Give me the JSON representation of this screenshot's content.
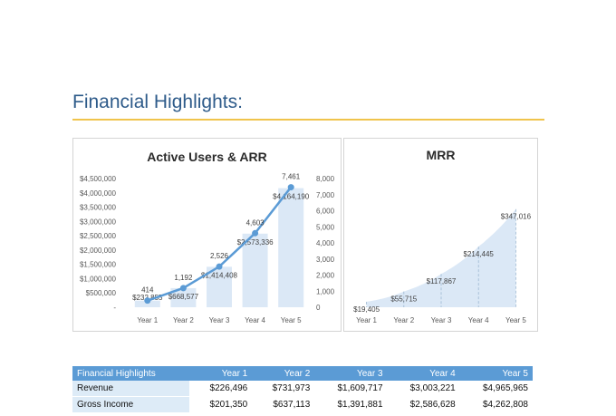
{
  "page_title": "Financial Highlights:",
  "colors": {
    "bar": "#dbe8f6",
    "line": "#5b9bd5",
    "area": "#dbe8f6",
    "accent_rule": "#f0c44c",
    "table_header": "#5b9bd5",
    "table_label": "#ddebf7"
  },
  "chart_data": [
    {
      "type": "bar",
      "title": "Active Users & ARR",
      "categories": [
        "Year 1",
        "Year 2",
        "Year 3",
        "Year 4",
        "Year 5"
      ],
      "series": [
        {
          "name": "",
          "type": "bar",
          "axis": "left",
          "values": [
            232855,
            668577,
            1414408,
            2573336,
            4164190
          ],
          "labels": [
            "$232,855",
            "$668,577",
            "$1,414,408",
            "$2,573,336",
            "$4,164,190"
          ]
        },
        {
          "name": "",
          "type": "line",
          "axis": "right",
          "values": [
            414,
            1192,
            2526,
            4603,
            7461
          ],
          "labels": [
            "414",
            "1,192",
            "2,526",
            "4,603",
            "7,461"
          ]
        }
      ],
      "y_left": {
        "lim": [
          0,
          4500000
        ],
        "ticks": [
          "-",
          "$500,000",
          "$1,000,000",
          "$1,500,000",
          "$2,000,000",
          "$2,500,000",
          "$3,000,000",
          "$3,500,000",
          "$4,000,000",
          "$4,500,000"
        ]
      },
      "y_right": {
        "lim": [
          0,
          8000
        ],
        "ticks": [
          "0",
          "1,000",
          "2,000",
          "3,000",
          "4,000",
          "5,000",
          "6,000",
          "7,000",
          "8,000"
        ]
      },
      "grid": false,
      "legend": "none"
    },
    {
      "type": "area",
      "title": "MRR",
      "categories": [
        "Year 1",
        "Year 2",
        "Year 3",
        "Year 4",
        "Year 5"
      ],
      "values": [
        19405,
        55715,
        117867,
        214445,
        347016
      ],
      "labels": [
        "$19,405",
        "$55,715",
        "$117,867",
        "$214,445",
        "$347,016"
      ],
      "ylim": [
        0,
        500000
      ],
      "grid": false,
      "legend": "none"
    }
  ],
  "table": {
    "header": [
      "Financial Highlights",
      "Year 1",
      "Year 2",
      "Year 3",
      "Year 4",
      "Year 5"
    ],
    "rows": [
      [
        "Revenue",
        "$226,496",
        "$731,973",
        "$1,609,717",
        "$3,003,221",
        "$4,965,965"
      ],
      [
        "Gross Income",
        "$201,350",
        "$637,113",
        "$1,391,881",
        "$2,586,628",
        "$4,262,808"
      ]
    ]
  }
}
